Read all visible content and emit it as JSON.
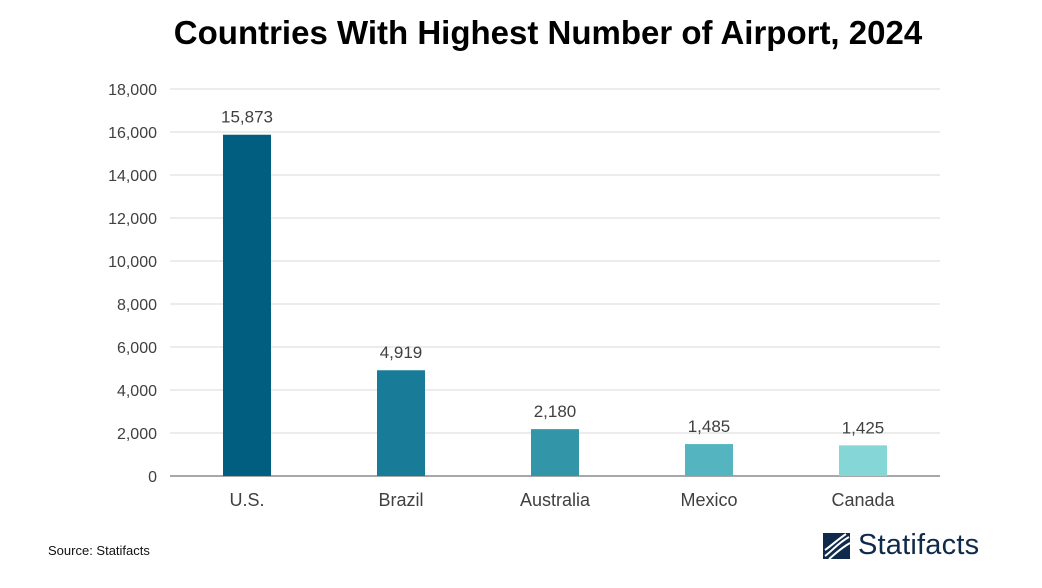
{
  "title": "Countries With Highest Number of Airport, 2024",
  "source": "Source: Statifacts",
  "brand": {
    "name": "Statifacts",
    "color": "#0f2a4a"
  },
  "chart_data": {
    "type": "bar",
    "title": "Countries With Highest Number of Airport, 2024",
    "xlabel": "",
    "ylabel": "",
    "categories": [
      "U.S.",
      "Brazil",
      "Australia",
      "Mexico",
      "Canada"
    ],
    "values": [
      15873,
      4919,
      2180,
      1485,
      1425
    ],
    "value_labels": [
      "15,873",
      "4,919",
      "2,180",
      "1,485",
      "1,425"
    ],
    "colors": [
      "#015e80",
      "#187c98",
      "#3296a8",
      "#54b4bf",
      "#84d6d7"
    ],
    "ylim": [
      0,
      18000
    ],
    "yticks": [
      0,
      2000,
      4000,
      6000,
      8000,
      10000,
      12000,
      14000,
      16000,
      18000
    ],
    "ytick_labels": [
      "0",
      "2,000",
      "4,000",
      "6,000",
      "8,000",
      "10,000",
      "12,000",
      "14,000",
      "16,000",
      "18,000"
    ],
    "grid": true,
    "legend": "none"
  }
}
